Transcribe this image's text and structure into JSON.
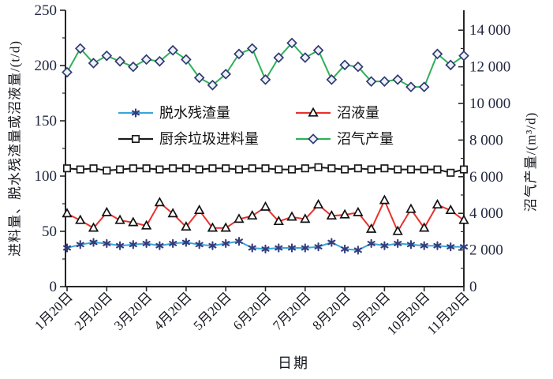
{
  "chart_data": {
    "type": "line",
    "title": "",
    "xlabel": "日期",
    "ylabel_left": "进料量、脱水残渣量或沼液量/(t/d)",
    "ylabel_right": "沼气产量/(m³/d)",
    "x_categories": [
      "1月20日",
      "2月20日",
      "3月20日",
      "4月20日",
      "5月20日",
      "6月20日",
      "7月20日",
      "8月20日",
      "9月20日",
      "10月20日",
      "11月20日"
    ],
    "points_per_month": 3,
    "n_points": 31,
    "grid": false,
    "left_axis": {
      "min": 0,
      "max": 250,
      "major_step": 50,
      "minor_step": 25,
      "tick_labels": [
        "0",
        "50",
        "100",
        "150",
        "200",
        "250"
      ]
    },
    "right_axis": {
      "min": 0,
      "max": 14000,
      "major_step": 2000,
      "minor_step": 1000,
      "tick_labels": [
        "0",
        "2 000",
        "4 000",
        "6 000",
        "8 000",
        "10 000",
        "12 000",
        "14 000"
      ]
    },
    "legend": {
      "position": "inside upper-left",
      "rows": [
        [
          "脱水残渣量",
          "沼液量"
        ],
        [
          "厨余垃圾进料量",
          "沼气产量"
        ]
      ]
    },
    "colors": {
      "dewatered_residue_line": "#3aa5da",
      "dewatered_residue_marker": "#333c7d",
      "biogas_slurry_line": "#e8322c",
      "biogas_slurry_marker": "#111111",
      "food_waste_feed_line": "#1b1b1b",
      "food_waste_feed_marker": "#1b1b1b",
      "biogas_production_line": "#2fb057",
      "biogas_production_marker": "#2f3a70",
      "axis": "#262626"
    },
    "series": [
      {
        "id": "dewatered-residue",
        "name": "脱水残渣量",
        "axis": "left",
        "line_color": "#3aa5da",
        "marker": "asterisk",
        "marker_color": "#333c7d",
        "values": [
          35,
          38,
          40,
          39,
          37,
          38,
          39,
          37,
          39,
          40,
          38,
          37,
          39,
          41,
          35,
          34,
          35,
          35,
          35,
          36,
          40,
          34,
          33,
          39,
          37,
          39,
          38,
          37,
          37,
          36,
          36
        ]
      },
      {
        "id": "biogas-slurry",
        "name": "沼液量",
        "axis": "left",
        "line_color": "#e8322c",
        "marker": "triangle-open",
        "marker_color": "#111111",
        "values": [
          66,
          60,
          53,
          67,
          60,
          58,
          55,
          76,
          66,
          54,
          69,
          53,
          53,
          61,
          64,
          72,
          59,
          63,
          61,
          74,
          64,
          65,
          67,
          52,
          78,
          50,
          70,
          53,
          74,
          69,
          60
        ]
      },
      {
        "id": "food-waste-feed",
        "name": "厨余垃圾进料量",
        "axis": "left",
        "line_color": "#1b1b1b",
        "marker": "square-open",
        "marker_color": "#1b1b1b",
        "values": [
          107,
          106,
          107,
          105,
          106,
          107,
          107,
          106,
          107,
          107,
          106,
          107,
          107,
          106,
          107,
          107,
          106,
          106,
          107,
          108,
          107,
          106,
          107,
          106,
          107,
          106,
          106,
          106,
          106,
          103,
          106
        ]
      },
      {
        "id": "biogas-production",
        "name": "沼气产量",
        "axis": "right",
        "line_color": "#2fb057",
        "marker": "diamond-open",
        "marker_color": "#2f3a70",
        "values": [
          11700,
          13000,
          12200,
          12600,
          12300,
          12000,
          12400,
          12300,
          12900,
          12400,
          11400,
          11000,
          11600,
          12700,
          13000,
          11300,
          12500,
          13300,
          12500,
          12900,
          11300,
          12100,
          12000,
          11200,
          11200,
          11300,
          10900,
          10900,
          12700,
          12100,
          12600
        ]
      }
    ]
  }
}
